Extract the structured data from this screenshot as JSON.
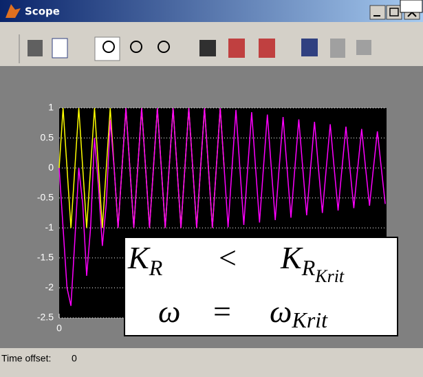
{
  "window": {
    "title": "Scope"
  },
  "status": {
    "label": "Time offset:",
    "value": "0"
  },
  "annotation": {
    "line1": {
      "lhs": "K",
      "lhs_sub": "R",
      "op": "<",
      "rhs": "K",
      "rhs_sub": "R",
      "rhs_subsub": "Krit"
    },
    "line2": {
      "lhs": "ω",
      "op": "=",
      "rhs": "ω",
      "rhs_sub": "Krit"
    }
  },
  "chart_data": {
    "type": "line",
    "x": [
      0,
      0.12,
      0.24,
      0.36,
      0.48,
      0.6,
      0.72,
      0.84,
      0.96,
      1.08,
      1.2,
      1.32,
      1.44,
      1.56,
      1.68,
      1.8,
      1.92,
      2.04,
      2.16,
      2.28,
      2.4,
      2.52,
      2.64,
      2.76,
      2.88,
      3,
      3.12,
      3.24,
      3.36,
      3.48,
      3.6,
      3.72,
      3.84,
      3.96,
      4.08,
      4.2,
      4.32,
      4.44,
      4.56,
      4.68,
      4.8,
      4.92,
      5.04,
      5.16,
      5.28,
      5.4,
      5.52,
      5.64,
      5.76,
      5.88,
      6,
      6.12,
      6.24,
      6.36,
      6.48,
      6.6,
      6.72,
      6.84,
      6.96,
      7.08,
      7.2,
      7.32,
      7.44,
      7.56,
      7.68,
      7.8,
      7.92,
      8.04,
      8.16,
      8.28,
      8.4,
      8.52,
      8.64,
      8.76,
      8.88,
      9,
      9.12,
      9.24,
      9.36,
      9.48,
      9.6,
      9.72,
      9.84,
      9.96
    ],
    "series": [
      {
        "color": "#ffff00",
        "values": [
          0,
          1,
          0,
          -1,
          0,
          1,
          0,
          -1,
          0,
          1,
          0,
          -1,
          0,
          1,
          0,
          -1,
          0,
          1,
          0,
          -1,
          0,
          1,
          0,
          -1,
          0,
          1,
          0,
          -1,
          0,
          1,
          0,
          -1,
          0,
          1,
          0,
          -1,
          0,
          1,
          0,
          -1,
          0,
          1,
          0,
          null,
          null,
          null,
          null,
          null,
          null,
          null,
          null,
          null,
          null,
          null,
          null,
          null,
          null,
          null,
          null,
          null,
          null,
          null,
          null,
          null,
          null,
          null,
          null,
          null,
          null,
          null,
          null,
          null,
          null,
          null,
          null,
          null,
          null,
          null,
          null,
          null,
          null,
          null,
          null,
          null
        ]
      },
      {
        "color": "#ff00ff",
        "values": [
          0,
          -1,
          -2,
          -2.3,
          -1.2,
          0,
          -0.6,
          -1.8,
          -1,
          0.5,
          -0.3,
          -1.3,
          -0.6,
          0.8,
          0,
          -1,
          0,
          1,
          0,
          -1,
          0,
          1,
          0,
          -1,
          0,
          1,
          0,
          -1,
          0,
          1,
          0,
          -1,
          0,
          1,
          0,
          -1,
          0,
          1,
          0,
          -1,
          0,
          1,
          0,
          -0.99,
          0,
          0.97,
          0,
          -0.95,
          0,
          0.93,
          0,
          -0.91,
          0,
          0.89,
          0,
          -0.87,
          0,
          0.85,
          0,
          -0.83,
          0,
          0.81,
          0,
          -0.79,
          0,
          0.77,
          0,
          -0.75,
          0,
          0.73,
          0,
          -0.71,
          0,
          0.69,
          0,
          -0.67,
          0,
          0.65,
          0,
          -0.63,
          0,
          0.61,
          0,
          -0.6
        ]
      }
    ],
    "xlim": [
      0,
      10
    ],
    "xticks": [
      0
    ],
    "ylim": [
      -2.5,
      1
    ],
    "yticks": [
      -2.5,
      -2,
      -1.5,
      -1,
      -0.5,
      0,
      0.5,
      1
    ],
    "grid": true,
    "background": "#000000"
  }
}
